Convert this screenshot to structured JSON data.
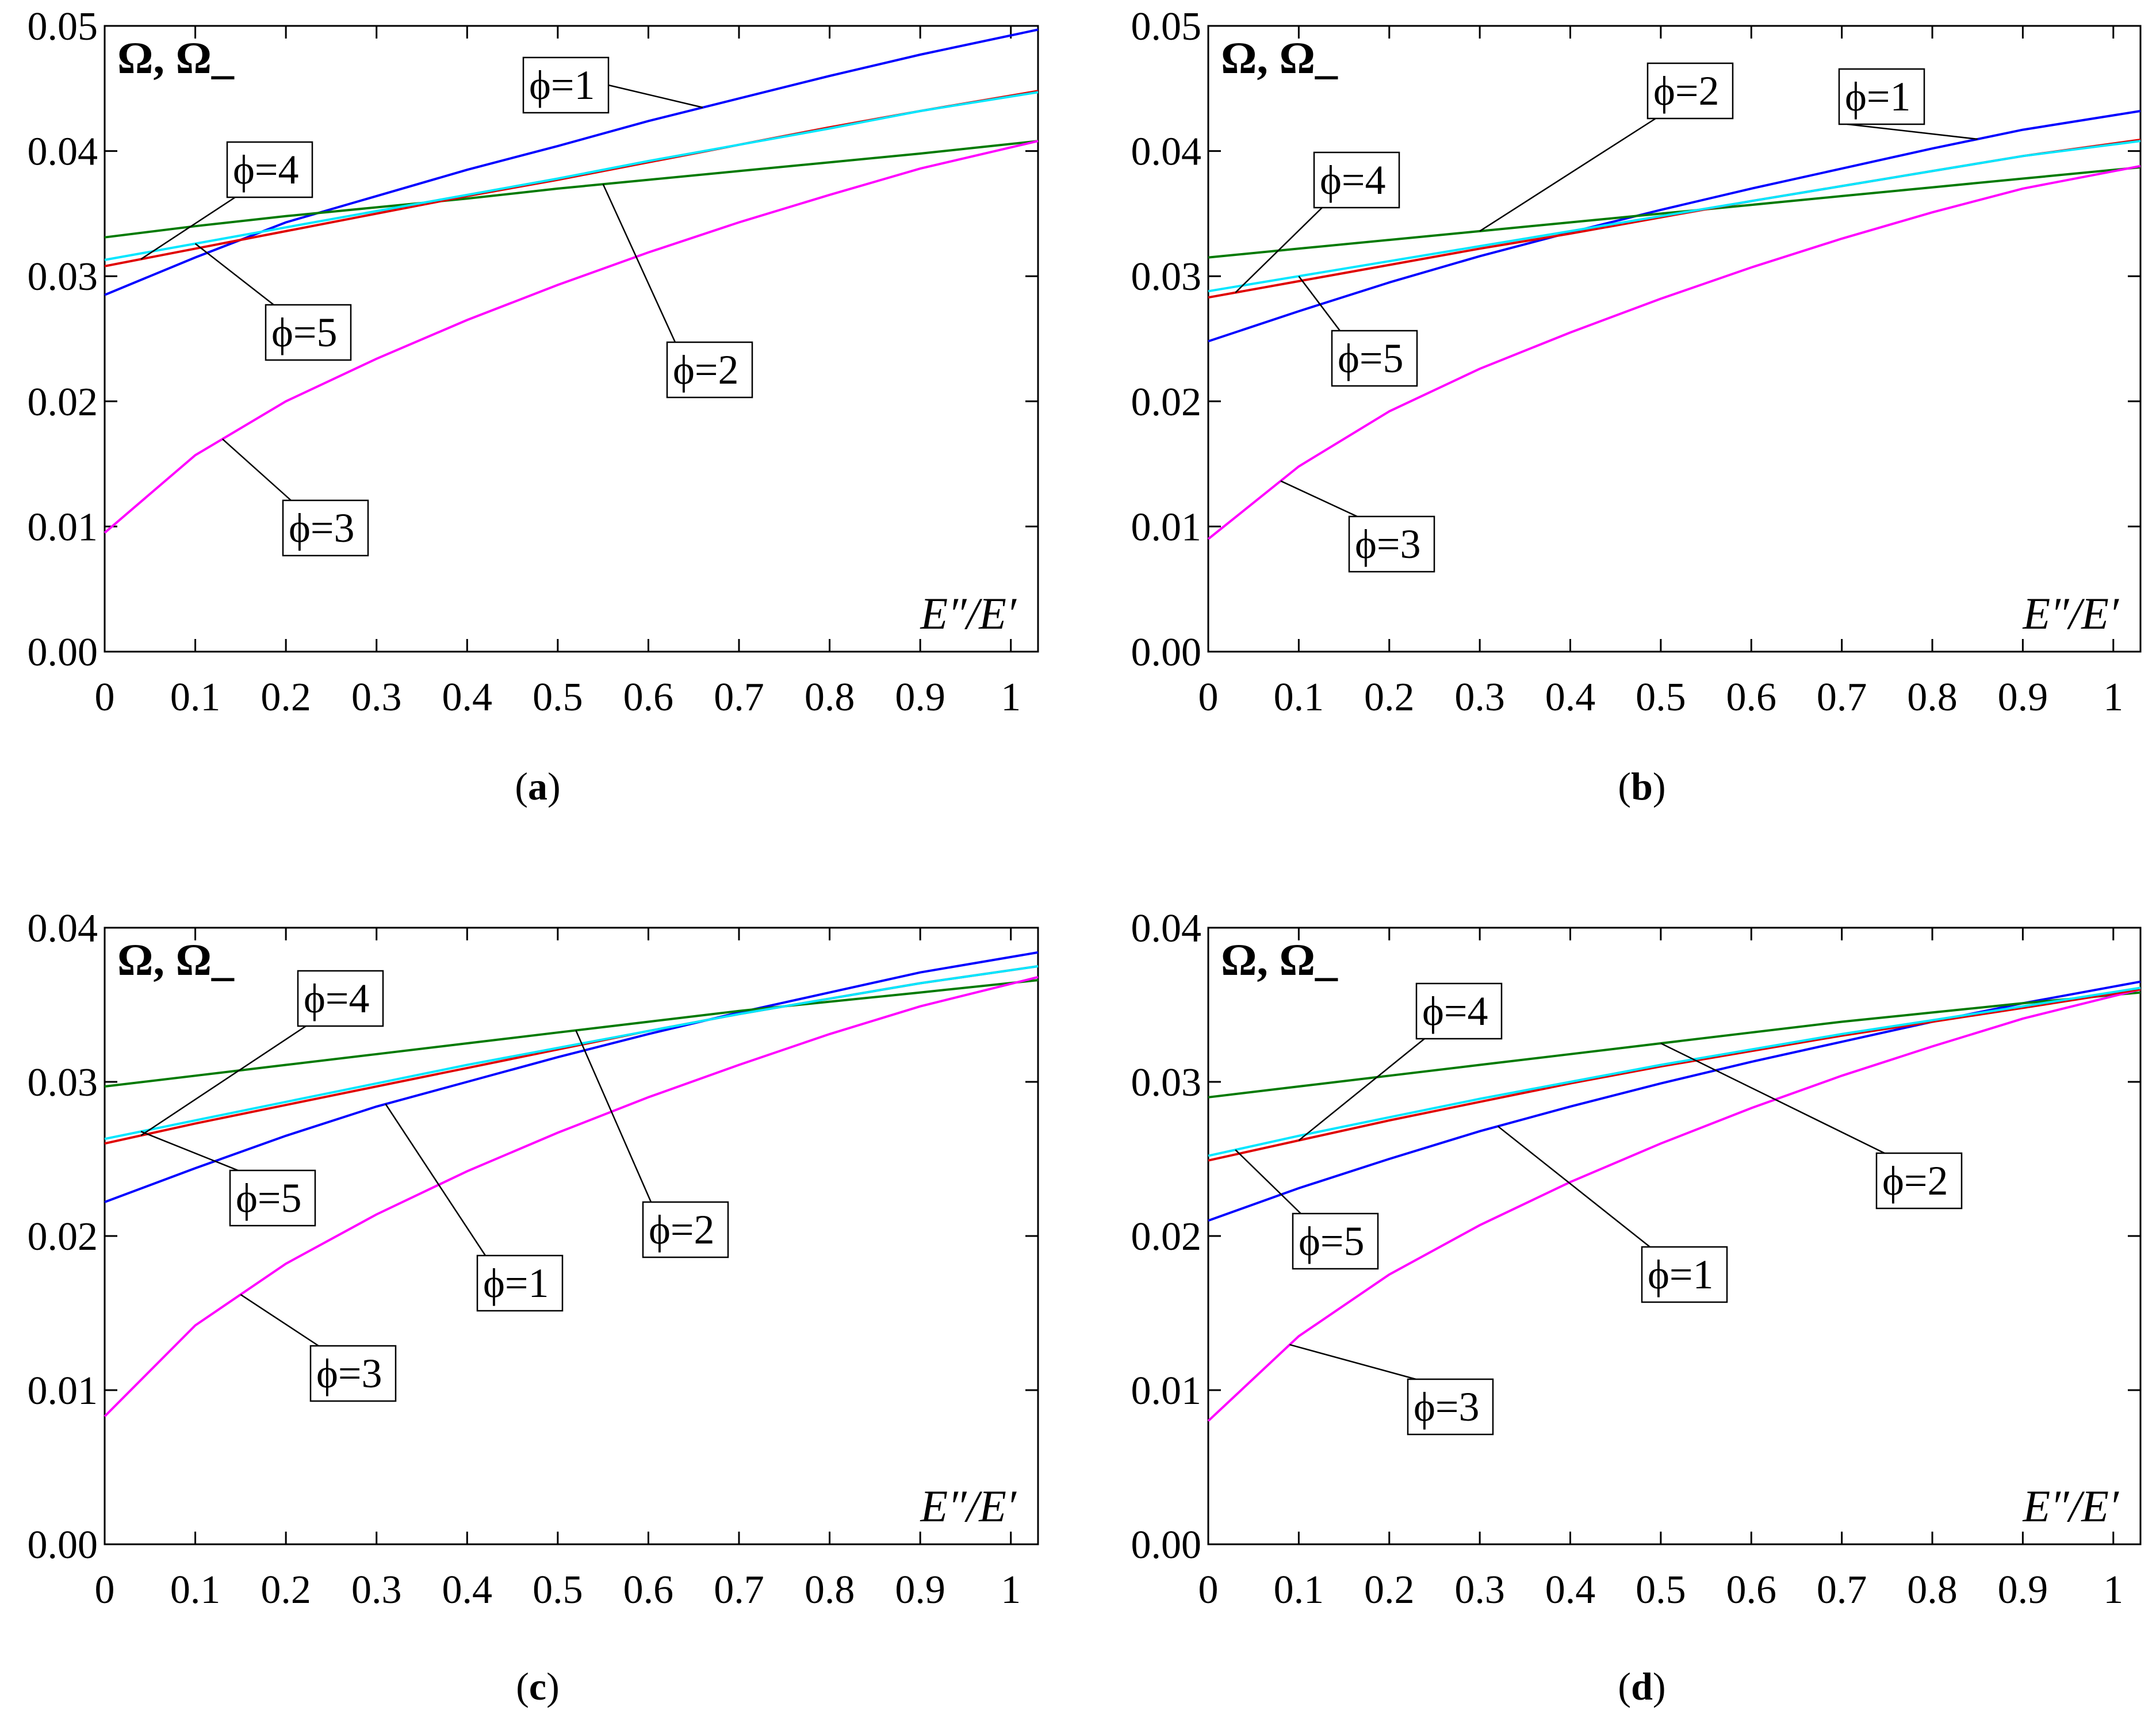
{
  "chart_data": [
    {
      "panel": "a",
      "caption": "a",
      "type": "line",
      "ylabel": "Ω, Ω_",
      "xlabel": "E″/E′",
      "xlim": [
        0,
        1.03
      ],
      "ylim": [
        0,
        0.05
      ],
      "xticks": [
        "0",
        "0.1",
        "0.2",
        "0.3",
        "0.4",
        "0.5",
        "0.6",
        "0.7",
        "0.8",
        "0.9",
        "1"
      ],
      "yticks": [
        "0.00",
        "0.01",
        "0.02",
        "0.03",
        "0.04",
        "0.05"
      ],
      "x": [
        0,
        0.1,
        0.2,
        0.3,
        0.4,
        0.5,
        0.6,
        0.7,
        0.8,
        0.9,
        1.03
      ],
      "series": [
        {
          "name": "ϕ=1",
          "color": "#0000ff",
          "values": [
            0.0285,
            0.0315,
            0.0343,
            0.0364,
            0.0385,
            0.0404,
            0.0424,
            0.0442,
            0.046,
            0.0477,
            0.0497
          ]
        },
        {
          "name": "ϕ=2",
          "color": "#007a00",
          "values": [
            0.0331,
            0.034,
            0.0348,
            0.0355,
            0.0362,
            0.037,
            0.0377,
            0.0384,
            0.0391,
            0.0398,
            0.0408
          ]
        },
        {
          "name": "ϕ=3",
          "color": "#ff00ff",
          "values": [
            0.0095,
            0.0157,
            0.02,
            0.0234,
            0.0265,
            0.0293,
            0.0319,
            0.0343,
            0.0365,
            0.0386,
            0.0408
          ]
        },
        {
          "name": "ϕ=4",
          "color": "#e00000",
          "values": [
            0.0308,
            0.0322,
            0.0336,
            0.035,
            0.0364,
            0.0377,
            0.0391,
            0.0405,
            0.0419,
            0.0432,
            0.0448
          ]
        },
        {
          "name": "ϕ=5",
          "color": "#00e6ff",
          "values": [
            0.0313,
            0.0326,
            0.0339,
            0.0352,
            0.0365,
            0.0378,
            0.0392,
            0.0405,
            0.0418,
            0.0432,
            0.0447
          ]
        }
      ],
      "annotations": [
        {
          "label": "ϕ=1",
          "series": "ϕ=1"
        },
        {
          "label": "ϕ=4",
          "series": "ϕ=4"
        },
        {
          "label": "ϕ=5",
          "series": "ϕ=5"
        },
        {
          "label": "ϕ=2",
          "series": "ϕ=2"
        },
        {
          "label": "ϕ=3",
          "series": "ϕ=3"
        }
      ]
    },
    {
      "panel": "b",
      "caption": "b",
      "type": "line",
      "ylabel": "Ω, Ω_",
      "xlabel": "E″/E′",
      "xlim": [
        0,
        1.03
      ],
      "ylim": [
        0,
        0.05
      ],
      "xticks": [
        "0",
        "0.1",
        "0.2",
        "0.3",
        "0.4",
        "0.5",
        "0.6",
        "0.7",
        "0.8",
        "0.9",
        "1"
      ],
      "yticks": [
        "0.00",
        "0.01",
        "0.02",
        "0.03",
        "0.04",
        "0.05"
      ],
      "x": [
        0,
        0.1,
        0.2,
        0.3,
        0.4,
        0.5,
        0.6,
        0.7,
        0.8,
        0.9,
        1.03
      ],
      "series": [
        {
          "name": "ϕ=1",
          "color": "#0000ff",
          "values": [
            0.0248,
            0.0272,
            0.0295,
            0.0316,
            0.0335,
            0.0353,
            0.037,
            0.0386,
            0.0402,
            0.0417,
            0.0432
          ]
        },
        {
          "name": "ϕ=2",
          "color": "#007a00",
          "values": [
            0.0315,
            0.0322,
            0.0329,
            0.0336,
            0.0343,
            0.035,
            0.0357,
            0.0364,
            0.0371,
            0.0378,
            0.0387
          ]
        },
        {
          "name": "ϕ=3",
          "color": "#ff00ff",
          "values": [
            0.009,
            0.0148,
            0.0192,
            0.0226,
            0.0255,
            0.0282,
            0.0307,
            0.033,
            0.0351,
            0.037,
            0.0388
          ]
        },
        {
          "name": "ϕ=4",
          "color": "#e00000",
          "values": [
            0.0283,
            0.0296,
            0.0309,
            0.0322,
            0.0334,
            0.0347,
            0.036,
            0.0372,
            0.0384,
            0.0396,
            0.0409
          ]
        },
        {
          "name": "ϕ=5",
          "color": "#00e6ff",
          "values": [
            0.0288,
            0.03,
            0.0312,
            0.0324,
            0.0336,
            0.0348,
            0.036,
            0.0372,
            0.0384,
            0.0396,
            0.0408
          ]
        }
      ],
      "annotations": [
        {
          "label": "ϕ=2",
          "series": "ϕ=2"
        },
        {
          "label": "ϕ=1",
          "series": "ϕ=1"
        },
        {
          "label": "ϕ=4",
          "series": "ϕ=4"
        },
        {
          "label": "ϕ=5",
          "series": "ϕ=5"
        },
        {
          "label": "ϕ=3",
          "series": "ϕ=3"
        }
      ]
    },
    {
      "panel": "c",
      "caption": "c",
      "type": "line",
      "ylabel": "Ω, Ω_",
      "xlabel": "E″/E′",
      "xlim": [
        0,
        1.03
      ],
      "ylim": [
        0,
        0.04
      ],
      "xticks": [
        "0",
        "0.1",
        "0.2",
        "0.3",
        "0.4",
        "0.5",
        "0.6",
        "0.7",
        "0.8",
        "0.9",
        "1"
      ],
      "yticks": [
        "0.00",
        "0.01",
        "0.02",
        "0.03",
        "0.04"
      ],
      "x": [
        0,
        0.1,
        0.2,
        0.3,
        0.4,
        0.5,
        0.6,
        0.7,
        0.8,
        0.9,
        1.03
      ],
      "series": [
        {
          "name": "ϕ=1",
          "color": "#0000ff",
          "values": [
            0.0222,
            0.0244,
            0.0265,
            0.0284,
            0.03,
            0.0316,
            0.0331,
            0.0345,
            0.0358,
            0.0371,
            0.0384
          ]
        },
        {
          "name": "ϕ=2",
          "color": "#007a00",
          "values": [
            0.0297,
            0.0304,
            0.0311,
            0.0318,
            0.0325,
            0.0332,
            0.0339,
            0.0346,
            0.0352,
            0.0358,
            0.0366
          ]
        },
        {
          "name": "ϕ=3",
          "color": "#ff00ff",
          "values": [
            0.0083,
            0.0142,
            0.0182,
            0.0214,
            0.0242,
            0.0267,
            0.029,
            0.0311,
            0.0331,
            0.0349,
            0.0368
          ]
        },
        {
          "name": "ϕ=4",
          "color": "#e00000",
          "values": [
            0.026,
            0.0273,
            0.0285,
            0.0297,
            0.0309,
            0.0321,
            0.0333,
            0.0344,
            0.0354,
            0.0364,
            0.0375
          ]
        },
        {
          "name": "ϕ=5",
          "color": "#00e6ff",
          "values": [
            0.0263,
            0.0275,
            0.0287,
            0.0299,
            0.0311,
            0.0322,
            0.0333,
            0.0344,
            0.0354,
            0.0364,
            0.0375
          ]
        }
      ],
      "annotations": [
        {
          "label": "ϕ=4",
          "series": "ϕ=4"
        },
        {
          "label": "ϕ=5",
          "series": "ϕ=5"
        },
        {
          "label": "ϕ=2",
          "series": "ϕ=2"
        },
        {
          "label": "ϕ=1",
          "series": "ϕ=1"
        },
        {
          "label": "ϕ=3",
          "series": "ϕ=3"
        }
      ]
    },
    {
      "panel": "d",
      "caption": "d",
      "type": "line",
      "ylabel": "Ω, Ω_",
      "xlabel": "E″/E′",
      "xlim": [
        0,
        1.03
      ],
      "ylim": [
        0,
        0.04
      ],
      "xticks": [
        "0",
        "0.1",
        "0.2",
        "0.3",
        "0.4",
        "0.5",
        "0.6",
        "0.7",
        "0.8",
        "0.9",
        "1"
      ],
      "yticks": [
        "0.00",
        "0.01",
        "0.02",
        "0.03",
        "0.04"
      ],
      "x": [
        0,
        0.1,
        0.2,
        0.3,
        0.4,
        0.5,
        0.6,
        0.7,
        0.8,
        0.9,
        1.03
      ],
      "series": [
        {
          "name": "ϕ=1",
          "color": "#0000ff",
          "values": [
            0.021,
            0.0231,
            0.025,
            0.0268,
            0.0284,
            0.0299,
            0.0313,
            0.0326,
            0.0339,
            0.0351,
            0.0365
          ]
        },
        {
          "name": "ϕ=2",
          "color": "#007a00",
          "values": [
            0.029,
            0.0297,
            0.0304,
            0.0311,
            0.0318,
            0.0325,
            0.0332,
            0.0339,
            0.0345,
            0.0351,
            0.0358
          ]
        },
        {
          "name": "ϕ=3",
          "color": "#ff00ff",
          "values": [
            0.008,
            0.0135,
            0.0175,
            0.0207,
            0.0235,
            0.026,
            0.0283,
            0.0304,
            0.0323,
            0.0341,
            0.036
          ]
        },
        {
          "name": "ϕ=4",
          "color": "#e00000",
          "values": [
            0.0249,
            0.0262,
            0.0275,
            0.0287,
            0.0299,
            0.031,
            0.032,
            0.033,
            0.0339,
            0.0348,
            0.036
          ]
        },
        {
          "name": "ϕ=5",
          "color": "#00e6ff",
          "values": [
            0.0252,
            0.0265,
            0.0277,
            0.0289,
            0.03,
            0.0311,
            0.0321,
            0.0331,
            0.034,
            0.0349,
            0.0361
          ]
        }
      ],
      "annotations": [
        {
          "label": "ϕ=4",
          "series": "ϕ=4"
        },
        {
          "label": "ϕ=5",
          "series": "ϕ=5"
        },
        {
          "label": "ϕ=2",
          "series": "ϕ=2"
        },
        {
          "label": "ϕ=1",
          "series": "ϕ=1"
        },
        {
          "label": "ϕ=3",
          "series": "ϕ=3"
        }
      ]
    }
  ]
}
